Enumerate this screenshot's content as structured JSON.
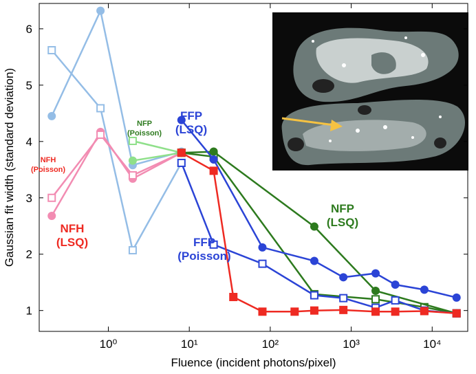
{
  "chart_data": {
    "type": "line",
    "xlabel": "Fluence (incident photons/pixel)",
    "ylabel": "Gaussian fit width (standard deviation)",
    "xscale": "log",
    "xlim": [
      0.14,
      27500
    ],
    "ylim": [
      0.63,
      6.45
    ],
    "xticks": [
      {
        "value": 1,
        "label": "10⁰"
      },
      {
        "value": 10,
        "label": "10¹"
      },
      {
        "value": 100,
        "label": "10²"
      },
      {
        "value": 1000,
        "label": "10³"
      },
      {
        "value": 10000,
        "label": "10⁴"
      }
    ],
    "yticks": [
      1,
      2,
      3,
      4,
      5,
      6
    ],
    "series": [
      {
        "color": "#94bde6",
        "marker": "circle",
        "x": [
          0.2,
          0.8,
          2,
          8
        ],
        "values": [
          4.45,
          6.32,
          3.58,
          3.82
        ]
      },
      {
        "color": "#94bde6",
        "marker": "open-square",
        "x": [
          0.2,
          0.8,
          2,
          8
        ],
        "values": [
          5.62,
          4.59,
          2.07,
          3.62
        ]
      },
      {
        "color": "#f28cb2",
        "marker": "circle",
        "x": [
          0.2,
          0.8,
          2,
          8
        ],
        "values": [
          2.68,
          4.17,
          3.34,
          3.8
        ]
      },
      {
        "color": "#f28cb2",
        "marker": "open-square",
        "x": [
          0.2,
          0.8,
          2,
          8
        ],
        "values": [
          3.0,
          4.12,
          3.4,
          3.8
        ]
      },
      {
        "color": "#8fe08a",
        "marker": "circle",
        "x": [
          2,
          8
        ],
        "values": [
          3.66,
          3.8
        ]
      },
      {
        "color": "#8fe08a",
        "marker": "open-square",
        "x": [
          2,
          8
        ],
        "values": [
          4.01,
          3.8
        ]
      },
      {
        "color": "#2d7a1e",
        "marker": "open-square",
        "x": [
          8,
          20,
          350,
          2000,
          8000,
          20000
        ],
        "values": [
          3.8,
          3.73,
          1.29,
          1.2,
          1.06,
          0.95
        ]
      },
      {
        "color": "#2d7a1e",
        "marker": "circle",
        "x": [
          8,
          20,
          350,
          2000,
          20000
        ],
        "values": [
          3.8,
          3.82,
          2.49,
          1.35,
          0.95
        ]
      },
      {
        "color": "#2b44d6",
        "marker": "open-square",
        "x": [
          8,
          20,
          80,
          350,
          800,
          2000,
          3500,
          8000,
          20000
        ],
        "values": [
          3.62,
          2.17,
          1.83,
          1.27,
          1.22,
          1.05,
          1.18,
          1.0,
          0.95
        ]
      },
      {
        "color": "#2b44d6",
        "marker": "circle",
        "x": [
          8,
          20,
          80,
          350,
          800,
          2000,
          3500,
          8000,
          20000
        ],
        "values": [
          4.38,
          3.68,
          2.12,
          1.88,
          1.59,
          1.66,
          1.46,
          1.37,
          1.23
        ]
      },
      {
        "color": "#ee2a22",
        "marker": "square",
        "x": [
          8,
          20,
          35,
          80,
          200,
          350,
          800,
          2000,
          3500,
          8000,
          20000
        ],
        "values": [
          3.8,
          3.48,
          1.24,
          0.98,
          0.98,
          1.0,
          1.01,
          0.98,
          0.98,
          0.99,
          0.95
        ]
      }
    ],
    "annotations": [
      {
        "text": [
          "FFP",
          "(LSQ)"
        ],
        "color": "#2b44d6"
      },
      {
        "text": [
          "NFP",
          "(Poisson)"
        ],
        "color": "#2d7a1e"
      },
      {
        "text": [
          "NFH",
          "(Poisson)"
        ],
        "color": "#ee2a22"
      },
      {
        "text": [
          "NFH",
          "(LSQ)"
        ],
        "color": "#ee2a22"
      },
      {
        "text": [
          "FFP",
          "(Poisson)"
        ],
        "color": "#2b44d6"
      },
      {
        "text": [
          "NFP",
          "(LSQ)"
        ],
        "color": "#2d7a1e"
      }
    ]
  }
}
